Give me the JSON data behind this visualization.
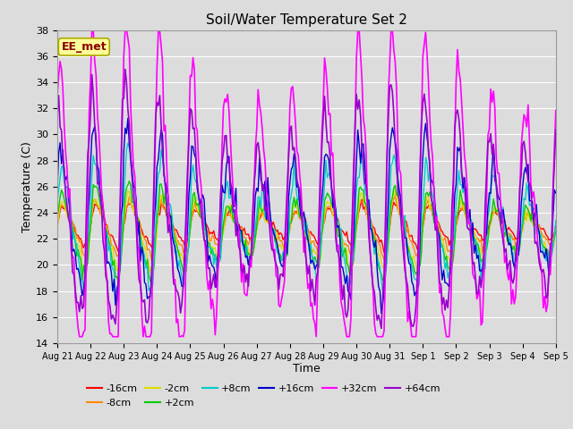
{
  "title": "Soil/Water Temperature Set 2",
  "xlabel": "Time",
  "ylabel": "Temperature (C)",
  "ylim": [
    14,
    38
  ],
  "background_color": "#dcdcdc",
  "plot_bg_color": "#dcdcdc",
  "annotation_text": "EE_met",
  "annotation_bg": "#ffff99",
  "annotation_edge": "#aaaa00",
  "annotation_text_color": "#880000",
  "series": [
    {
      "label": "-16cm",
      "color": "#ff0000",
      "lw": 1.0,
      "amp": 1.2,
      "phase": 0.0,
      "noise": 0.15,
      "base": 23.0
    },
    {
      "label": "-8cm",
      "color": "#ff8800",
      "lw": 1.0,
      "amp": 1.5,
      "phase": 0.05,
      "noise": 0.2,
      "base": 22.8
    },
    {
      "label": "-2cm",
      "color": "#dddd00",
      "lw": 1.0,
      "amp": 2.0,
      "phase": 0.1,
      "noise": 0.25,
      "base": 22.5
    },
    {
      "label": "+2cm",
      "color": "#00cc00",
      "lw": 1.0,
      "amp": 2.5,
      "phase": 0.15,
      "noise": 0.3,
      "base": 22.5
    },
    {
      "label": "+8cm",
      "color": "#00cccc",
      "lw": 1.0,
      "amp": 3.5,
      "phase": 0.3,
      "noise": 0.5,
      "base": 23.0
    },
    {
      "label": "+16cm",
      "color": "#0000cc",
      "lw": 1.0,
      "amp": 4.5,
      "phase": 0.5,
      "noise": 0.7,
      "base": 23.5
    },
    {
      "label": "+32cm",
      "color": "#ff00ff",
      "lw": 1.2,
      "amp": 9.5,
      "phase": 0.7,
      "noise": 0.8,
      "base": 24.0
    },
    {
      "label": "+64cm",
      "color": "#9900cc",
      "lw": 1.2,
      "amp": 6.5,
      "phase": 0.9,
      "noise": 0.6,
      "base": 23.5
    }
  ],
  "xtick_labels": [
    "Aug 21",
    "Aug 22",
    "Aug 23",
    "Aug 24",
    "Aug 25",
    "Aug 26",
    "Aug 27",
    "Aug 28",
    "Aug 29",
    "Aug 30",
    "Aug 31",
    "Sep 1",
    "Sep 2",
    "Sep 3",
    "Sep 4",
    "Sep 5"
  ]
}
